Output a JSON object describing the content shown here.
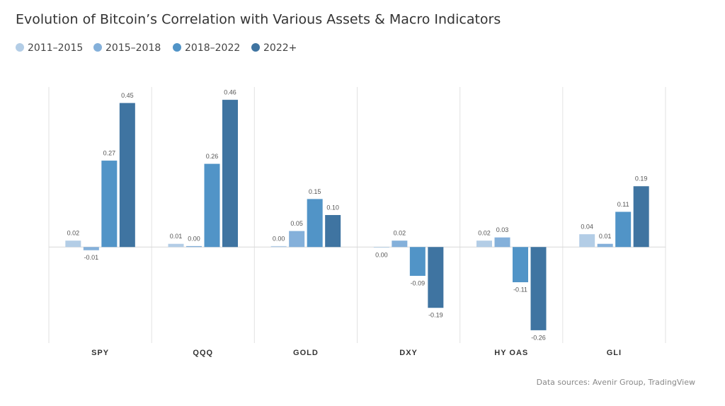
{
  "chart_data": {
    "type": "bar",
    "title": "Evolution of Bitcoin’s Correlation with Various Assets & Macro Indicators",
    "categories": [
      "SPY",
      "QQQ",
      "GOLD",
      "DXY",
      "HY OAS",
      "GLI"
    ],
    "series": [
      {
        "name": "2011–2015",
        "color": "#b3cde6",
        "values": [
          0.02,
          0.01,
          0.003,
          -0.002,
          0.02,
          0.04
        ],
        "value_labels": [
          "0.02",
          "0.01",
          "0.00",
          "0.00",
          "0.02",
          "0.04"
        ]
      },
      {
        "name": "2015–2018",
        "color": "#84b0da",
        "values": [
          -0.01,
          0.003,
          0.05,
          0.02,
          0.03,
          0.01
        ],
        "value_labels": [
          "-0.01",
          "0.00",
          "0.05",
          "0.02",
          "0.03",
          "0.01"
        ]
      },
      {
        "name": "2018–2022",
        "color": "#5194c7",
        "values": [
          0.27,
          0.26,
          0.15,
          -0.09,
          -0.11,
          0.11
        ],
        "value_labels": [
          "0.27",
          "0.26",
          "0.15",
          "-0.09",
          "-0.11",
          "0.11"
        ]
      },
      {
        "name": "2022+",
        "color": "#3f74a1",
        "values": [
          0.45,
          0.46,
          0.1,
          -0.19,
          -0.26,
          0.19
        ],
        "value_labels": [
          "0.45",
          "0.46",
          "0.10",
          "-0.19",
          "-0.26",
          "0.19"
        ]
      }
    ],
    "ylim": [
      -0.3,
      0.5
    ],
    "source": "Data sources: Avenir Group, TradingView"
  }
}
